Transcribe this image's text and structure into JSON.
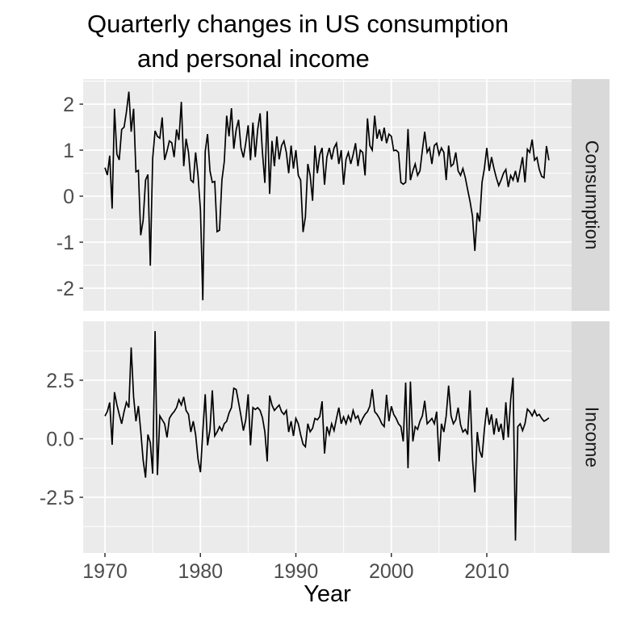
{
  "title": {
    "line1": "Quarterly changes in US consumption",
    "line2": "and personal income"
  },
  "axes": {
    "x_label": "Year",
    "x_major_ticks": [
      1970,
      1980,
      1990,
      2000,
      2010
    ],
    "x_minor_ticks": [
      1975,
      1985,
      1995,
      2005,
      2015
    ],
    "x_range": [
      1967.7,
      2019.0
    ]
  },
  "facets": [
    {
      "label": "Consumption",
      "y_major_ticks": [
        2,
        1,
        0,
        -1,
        -2
      ],
      "y_tick_labels": [
        "2",
        "1",
        "0",
        "-1",
        "-2"
      ],
      "y_minor_ticks": [
        2.5,
        1.5,
        0.5,
        -0.5,
        -1.5,
        -2.5
      ],
      "ylim": [
        -2.49,
        2.54
      ]
    },
    {
      "label": "Income",
      "y_major_ticks": [
        2.5,
        0,
        -2.5
      ],
      "y_tick_labels": [
        "2.5",
        "0.0",
        "-2.5"
      ],
      "y_minor_ticks": [
        3.75,
        1.25,
        -1.25,
        -3.75
      ],
      "ylim": [
        -4.88,
        5.02
      ]
    }
  ],
  "colors": {
    "panel_bg": "#EBEBEB",
    "grid": "#FFFFFF",
    "strip_bg": "#D9D9D9",
    "strip_text": "#1A1A1A",
    "axis_text": "#4D4D4D",
    "tick_mark": "#333333",
    "series_line": "#000000",
    "title_text": "#000000"
  },
  "chart_data": {
    "type": "line",
    "title": "Quarterly changes in US consumption and personal income",
    "xlabel": "Year",
    "ylabel": "",
    "x_start": 1970.0,
    "x_step": 0.25,
    "x_end": 2016.5,
    "frequency": "quarterly",
    "legend_position": "none",
    "grid": true,
    "facet_layout": "rows",
    "series": [
      {
        "name": "Consumption",
        "values": [
          0.62,
          0.46,
          0.88,
          -0.27,
          1.9,
          0.91,
          0.79,
          1.45,
          1.5,
          1.83,
          2.27,
          1.4,
          1.9,
          0.53,
          0.56,
          -0.85,
          -0.53,
          0.35,
          0.47,
          -1.51,
          0.82,
          1.42,
          1.3,
          1.26,
          1.71,
          0.79,
          0.98,
          1.2,
          1.16,
          0.85,
          1.45,
          1.22,
          2.05,
          0.65,
          1.25,
          0.95,
          0.35,
          0.3,
          0.95,
          0.45,
          -0.3,
          -2.26,
          0.97,
          1.35,
          0.55,
          0.3,
          0.32,
          -0.77,
          -0.74,
          0.35,
          0.75,
          1.75,
          1.3,
          1.91,
          1.03,
          1.45,
          1.66,
          1.05,
          0.84,
          1.15,
          1.54,
          0.78,
          1.6,
          0.85,
          1.45,
          1.8,
          0.95,
          0.29,
          1.85,
          0.05,
          1.2,
          0.65,
          1.3,
          0.8,
          1.1,
          1.2,
          0.95,
          0.5,
          1.1,
          0.6,
          1.0,
          0.45,
          0.35,
          -0.78,
          -0.45,
          0.7,
          0.45,
          -0.1,
          1.1,
          0.5,
          0.9,
          1.05,
          0.25,
          0.85,
          1.05,
          0.8,
          1.05,
          1.15,
          0.7,
          1.0,
          0.25,
          0.8,
          0.95,
          0.7,
          0.9,
          1.15,
          0.65,
          1.0,
          0.95,
          0.45,
          1.69,
          1.1,
          1.0,
          1.75,
          1.25,
          1.45,
          1.2,
          1.49,
          1.15,
          1.35,
          1.3,
          0.99,
          1.0,
          0.95,
          0.3,
          0.26,
          0.3,
          1.46,
          0.35,
          0.55,
          0.7,
          0.45,
          0.55,
          1.0,
          1.4,
          0.95,
          1.05,
          0.7,
          1.1,
          1.15,
          0.9,
          1.05,
          0.95,
          0.35,
          1.1,
          0.65,
          0.7,
          0.95,
          0.55,
          0.45,
          0.6,
          0.4,
          0.14,
          -0.12,
          -0.44,
          -1.19,
          -0.36,
          -0.55,
          0.3,
          0.6,
          1.05,
          0.55,
          0.85,
          0.6,
          0.4,
          0.23,
          0.35,
          0.5,
          0.58,
          0.2,
          0.45,
          0.35,
          0.55,
          0.3,
          0.58,
          0.85,
          0.3,
          1.02,
          0.95,
          1.23,
          0.78,
          0.84,
          0.58,
          0.43,
          0.4,
          1.09,
          0.78
        ]
      },
      {
        "name": "Income",
        "values": [
          0.97,
          1.17,
          1.55,
          -0.26,
          1.99,
          1.45,
          1.04,
          0.64,
          1.16,
          1.56,
          1.33,
          3.9,
          1.79,
          0.75,
          1.4,
          0.35,
          -0.91,
          -1.66,
          0.18,
          -0.17,
          -1.49,
          4.6,
          -1.55,
          0.98,
          0.81,
          0.64,
          0.06,
          0.87,
          1.04,
          1.16,
          1.33,
          1.67,
          1.44,
          1.79,
          1.21,
          1.04,
          0.29,
          0.75,
          0.18,
          -0.86,
          -1.43,
          0.3,
          1.9,
          -0.28,
          0.4,
          2.07,
          0.12,
          0.29,
          0.52,
          0.35,
          0.64,
          0.75,
          1.1,
          1.33,
          2.16,
          2.1,
          1.56,
          0.98,
          0.35,
          0.8,
          1.9,
          -0.28,
          1.33,
          1.25,
          1.33,
          1.21,
          0.9,
          0.29,
          -0.97,
          1.85,
          1.44,
          1.21,
          1.33,
          1.44,
          1.16,
          1.04,
          1.21,
          0.29,
          0.75,
          0.12,
          0.87,
          0.64,
          0.18,
          -0.23,
          -0.34,
          0.64,
          0.3,
          0.45,
          0.87,
          0.81,
          0.95,
          1.6,
          -0.63,
          0.52,
          0.18,
          0.64,
          0.35,
          0.87,
          1.33,
          0.64,
          0.93,
          0.64,
          0.98,
          0.75,
          1.21,
          0.87,
          0.98,
          0.64,
          0.87,
          1.04,
          1.16,
          1.39,
          2.11,
          1.16,
          1.04,
          0.87,
          0.64,
          0.52,
          1.88,
          0.75,
          1.39,
          1.04,
          0.87,
          0.64,
          0.52,
          -0.11,
          2.4,
          -1.26,
          2.44,
          -0.11,
          0.52,
          0.4,
          0.75,
          0.98,
          1.62,
          0.64,
          0.75,
          0.87,
          0.64,
          1.16,
          -0.97,
          0.64,
          0.29,
          0.98,
          2.27,
          0.98,
          0.64,
          0.81,
          1.33,
          0.6,
          0.29,
          0.4,
          0.18,
          2.07,
          -0.86,
          -2.29,
          0.29,
          -0.51,
          -0.8,
          0.4,
          1.33,
          0.6,
          1.04,
          0.18,
          0.87,
          0.3,
          0.64,
          -0.05,
          1.56,
          0.06,
          1.67,
          2.61,
          -4.35,
          0.52,
          0.64,
          0.35,
          0.64,
          1.27,
          1.16,
          0.98,
          1.21,
          0.98,
          1.04,
          0.87,
          0.75,
          0.81,
          0.89
        ]
      }
    ]
  }
}
